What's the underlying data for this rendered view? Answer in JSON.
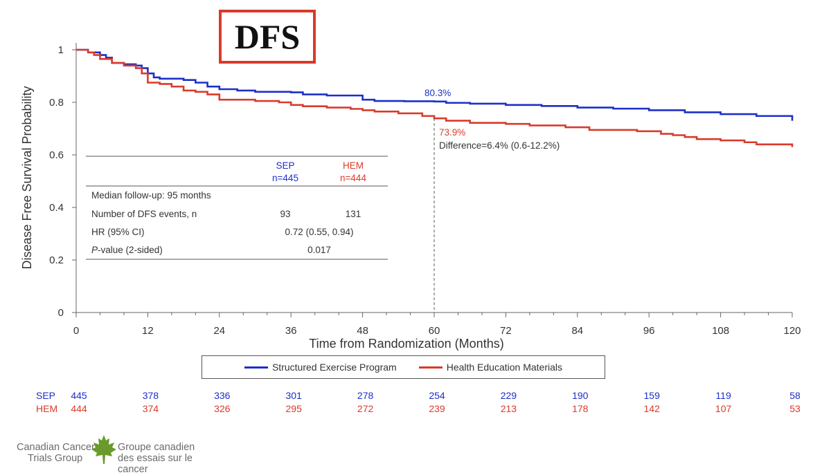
{
  "title": "DFS",
  "chart_data": {
    "type": "line",
    "xlabel": "Time from Randomization (Months)",
    "ylabel": "Disease Free Survival Probability",
    "xlim": [
      0,
      120
    ],
    "ylim": [
      0,
      1
    ],
    "xticks": [
      0,
      12,
      24,
      36,
      48,
      60,
      72,
      84,
      96,
      108,
      120
    ],
    "yticks": [
      0,
      0.2,
      0.4,
      0.6,
      0.8,
      1
    ],
    "ytick_labels": [
      "0",
      "0.2",
      "0.4",
      "0.6",
      "0.8",
      "1"
    ],
    "grid": false,
    "legend_position": "bottom",
    "series": [
      {
        "name": "Structured Exercise Program",
        "short": "SEP",
        "color": "#1c2fc8",
        "step": true,
        "x": [
          0,
          2,
          4,
          5,
          6,
          8,
          10,
          11,
          12,
          13,
          14,
          18,
          20,
          22,
          24,
          27,
          30,
          36,
          38,
          42,
          48,
          50,
          55,
          60,
          62,
          66,
          72,
          78,
          84,
          90,
          96,
          102,
          108,
          114,
          120
        ],
        "y": [
          1,
          0.99,
          0.98,
          0.97,
          0.95,
          0.945,
          0.94,
          0.93,
          0.91,
          0.895,
          0.89,
          0.885,
          0.875,
          0.86,
          0.85,
          0.845,
          0.84,
          0.838,
          0.83,
          0.826,
          0.81,
          0.805,
          0.804,
          0.803,
          0.798,
          0.795,
          0.79,
          0.786,
          0.78,
          0.776,
          0.77,
          0.762,
          0.755,
          0.748,
          0.73
        ]
      },
      {
        "name": "Health Education Materials",
        "short": "HEM",
        "color": "#d93a2b",
        "step": true,
        "x": [
          0,
          2,
          3,
          4,
          6,
          8,
          10,
          11,
          12,
          14,
          16,
          18,
          20,
          22,
          24,
          30,
          34,
          36,
          38,
          42,
          46,
          48,
          50,
          54,
          58,
          60,
          62,
          66,
          72,
          76,
          82,
          86,
          94,
          98,
          100,
          102,
          104,
          108,
          112,
          114,
          120
        ],
        "y": [
          1,
          0.99,
          0.98,
          0.965,
          0.95,
          0.94,
          0.93,
          0.91,
          0.875,
          0.87,
          0.86,
          0.845,
          0.84,
          0.83,
          0.81,
          0.805,
          0.8,
          0.79,
          0.785,
          0.78,
          0.775,
          0.77,
          0.765,
          0.758,
          0.748,
          0.739,
          0.73,
          0.722,
          0.718,
          0.712,
          0.705,
          0.695,
          0.69,
          0.68,
          0.675,
          0.668,
          0.66,
          0.655,
          0.648,
          0.64,
          0.63
        ]
      }
    ],
    "annotations": {
      "sep_rate": "80.3%",
      "hem_rate": "73.9%",
      "difference": "Difference=6.4% (0.6-12.2%)",
      "reference_x": 60
    },
    "stats_table": {
      "col_sep": "SEP",
      "col_sep_n": "n=445",
      "col_hem": "HEM",
      "col_hem_n": "n=444",
      "median_followup": "Median follow-up: 95 months",
      "events_label": "Number of DFS events, n",
      "events_sep": "93",
      "events_hem": "131",
      "hr_label": "HR (95% CI)",
      "hr_value": "0.72 (0.55, 0.94)",
      "p_label_italic": "P",
      "p_label_rest": "-value (2-sided)",
      "p_value": "0.017"
    },
    "risk_table": {
      "sep_label": "SEP",
      "hem_label": "HEM",
      "sep": [
        "445",
        "378",
        "336",
        "301",
        "278",
        "254",
        "229",
        "190",
        "159",
        "119",
        "58"
      ],
      "hem": [
        "444",
        "374",
        "326",
        "295",
        "272",
        "239",
        "213",
        "178",
        "142",
        "107",
        "53"
      ]
    }
  },
  "footer": {
    "org_en_line1": "Canadian Cancer",
    "org_en_line2": "Trials Group",
    "org_fr_line1": "Groupe canadien",
    "org_fr_line2": "des essais sur le cancer",
    "logo_icon": "maple-leaf-icon",
    "logo_color": "#6a9a2c"
  }
}
